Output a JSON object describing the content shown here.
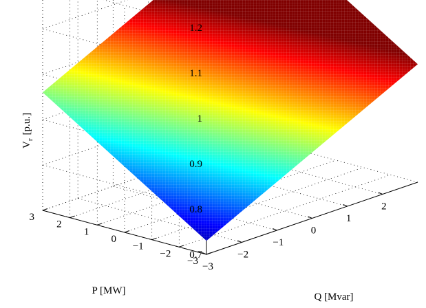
{
  "chart_data": {
    "type": "surface",
    "title": "",
    "xlabel": "Q [Mvar]",
    "ylabel": "P [MW]",
    "zlabel_main": "V",
    "zlabel_sub": "r",
    "zlabel_unit": "[p.u.]",
    "xlim": [
      -3,
      3
    ],
    "ylim": [
      -3,
      3
    ],
    "zlim": [
      0.7,
      1.2
    ],
    "x_ticks": [
      -3,
      -2,
      -1,
      0,
      1,
      2
    ],
    "x_tick_labels": [
      "−3",
      "−2",
      "−1",
      "0",
      "1",
      "2"
    ],
    "y_ticks": [
      -3,
      -2,
      -1,
      0,
      1,
      2,
      3
    ],
    "y_tick_labels": [
      "−3",
      "−2",
      "−1",
      "0",
      "1",
      "2",
      "3"
    ],
    "z_ticks": [
      0.7,
      0.8,
      0.9,
      1.0,
      1.1,
      1.2
    ],
    "z_tick_labels": [
      "0.7",
      "0.8",
      "0.9",
      "1",
      "1.1",
      "1.2"
    ],
    "surface_corners": {
      "Q=3,P=3": 1.19,
      "Q=-3,P=3": 0.96,
      "Q=3,P=-3": 0.96,
      "Q=-3,P=-3": 0.73
    },
    "colormap": "jet",
    "grid": true
  }
}
